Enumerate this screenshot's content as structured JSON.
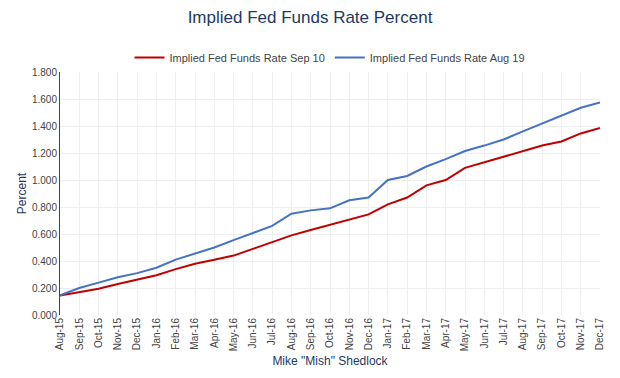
{
  "chart_data": {
    "type": "line",
    "title": "Implied Fed Funds Rate Percent",
    "x_label": "Mike \"Mish\" Shedlock",
    "y_label": "Percent",
    "categories": [
      "Aug-15",
      "Sep-15",
      "Oct-15",
      "Nov-15",
      "Dec-15",
      "Jan-16",
      "Feb-16",
      "Mar-16",
      "Apr-16",
      "May-16",
      "Jun-16",
      "Jul-16",
      "Aug-16",
      "Sep-16",
      "Oct-16",
      "Nov-16",
      "Dec-16",
      "Jan-17",
      "Feb-17",
      "Mar-17",
      "Apr-17",
      "May-17",
      "Jun-17",
      "Jul-17",
      "Aug-17",
      "Sep-17",
      "Oct-17",
      "Nov-17",
      "Dec-17"
    ],
    "series": [
      {
        "name": "Implied Fed Funds Rate Sep 10",
        "color": "#c00000",
        "values": [
          0.145,
          0.17,
          0.195,
          0.23,
          0.265,
          0.295,
          0.34,
          0.38,
          0.41,
          0.44,
          0.49,
          0.54,
          0.59,
          0.63,
          0.67,
          0.71,
          0.745,
          0.82,
          0.87,
          0.96,
          1.0,
          1.09,
          1.13,
          1.175,
          1.21,
          1.255,
          1.285,
          1.345,
          1.385
        ]
      },
      {
        "name": "Implied Fed Funds Rate Aug 19",
        "color": "#4472c4",
        "values": [
          0.145,
          0.2,
          0.24,
          0.28,
          0.31,
          0.35,
          0.41,
          0.455,
          0.5,
          0.555,
          0.61,
          0.66,
          0.75,
          0.775,
          0.79,
          0.85,
          0.87,
          1.0,
          1.03,
          1.1,
          1.155,
          1.215,
          1.255,
          1.3,
          1.36,
          1.42,
          1.475,
          1.535,
          1.575
        ]
      }
    ],
    "ylim": [
      0.0,
      1.8
    ],
    "yticks": [
      {
        "value": 0.0,
        "label": "0.000"
      },
      {
        "value": 0.2,
        "label": "0.200"
      },
      {
        "value": 0.4,
        "label": "0.400"
      },
      {
        "value": 0.6,
        "label": "0.600"
      },
      {
        "value": 0.8,
        "label": "0.800"
      },
      {
        "value": 1.0,
        "label": "1.000"
      },
      {
        "value": 1.2,
        "label": "1.200"
      },
      {
        "value": 1.4,
        "label": "1.400"
      },
      {
        "value": 1.6,
        "label": "1.600"
      },
      {
        "value": 1.8,
        "label": "1.800"
      }
    ],
    "grid": true,
    "legend": "top"
  }
}
